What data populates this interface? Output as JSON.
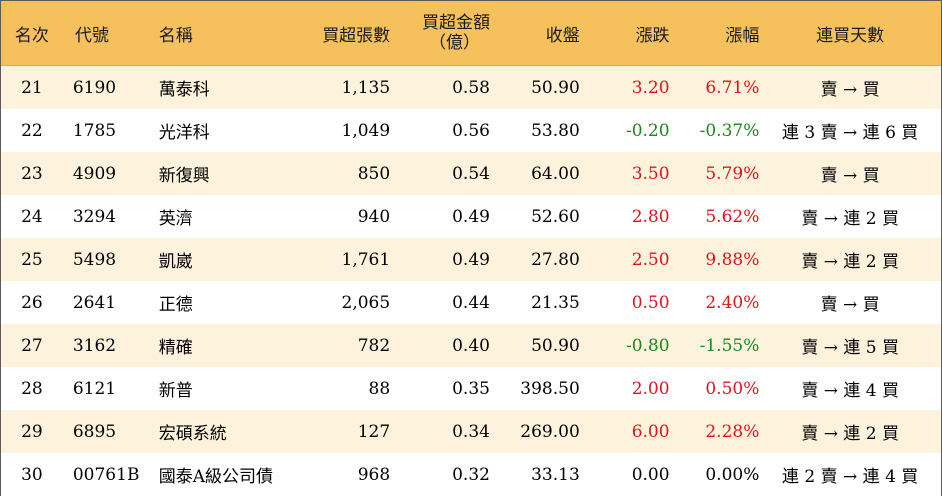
{
  "header": {
    "rank": "名次",
    "code": "代號",
    "name": "名稱",
    "net_lots": "買超張數",
    "amount_line1": "買超金額",
    "amount_line2": "（億）",
    "close": "收盤",
    "change": "漲跌",
    "change_pct": "漲幅",
    "consecutive_days": "連買天數"
  },
  "colors": {
    "header_bg": "#f6c15d",
    "odd_row_bg": "#fdf2dc",
    "up": "#e0141c",
    "down": "#178a1e"
  },
  "rows": [
    {
      "rank": "21",
      "code": "6190",
      "name": "萬泰科",
      "net": "1,135",
      "amount": "0.58",
      "close": "50.90",
      "change": "3.20",
      "pct": "6.71%",
      "trend": "up",
      "days": "賣 → 買"
    },
    {
      "rank": "22",
      "code": "1785",
      "name": "光洋科",
      "net": "1,049",
      "amount": "0.56",
      "close": "53.80",
      "change": "-0.20",
      "pct": "-0.37%",
      "trend": "down",
      "days": "連 3 賣 → 連 6 買"
    },
    {
      "rank": "23",
      "code": "4909",
      "name": "新復興",
      "net": "850",
      "amount": "0.54",
      "close": "64.00",
      "change": "3.50",
      "pct": "5.79%",
      "trend": "up",
      "days": "賣 → 買"
    },
    {
      "rank": "24",
      "code": "3294",
      "name": "英濟",
      "net": "940",
      "amount": "0.49",
      "close": "52.60",
      "change": "2.80",
      "pct": "5.62%",
      "trend": "up",
      "days": "賣 → 連 2 買"
    },
    {
      "rank": "25",
      "code": "5498",
      "name": "凱崴",
      "net": "1,761",
      "amount": "0.49",
      "close": "27.80",
      "change": "2.50",
      "pct": "9.88%",
      "trend": "up",
      "days": "賣 → 連 2 買"
    },
    {
      "rank": "26",
      "code": "2641",
      "name": "正德",
      "net": "2,065",
      "amount": "0.44",
      "close": "21.35",
      "change": "0.50",
      "pct": "2.40%",
      "trend": "up",
      "days": "賣 → 買"
    },
    {
      "rank": "27",
      "code": "3162",
      "name": "精確",
      "net": "782",
      "amount": "0.40",
      "close": "50.90",
      "change": "-0.80",
      "pct": "-1.55%",
      "trend": "down",
      "days": "賣 → 連 5 買"
    },
    {
      "rank": "28",
      "code": "6121",
      "name": "新普",
      "net": "88",
      "amount": "0.35",
      "close": "398.50",
      "change": "2.00",
      "pct": "0.50%",
      "trend": "up",
      "days": "賣 → 連 4 買"
    },
    {
      "rank": "29",
      "code": "6895",
      "name": "宏碩系統",
      "net": "127",
      "amount": "0.34",
      "close": "269.00",
      "change": "6.00",
      "pct": "2.28%",
      "trend": "up",
      "days": "賣 → 連 2 買"
    },
    {
      "rank": "30",
      "code": "00761B",
      "name": "國泰A級公司債",
      "net": "968",
      "amount": "0.32",
      "close": "33.13",
      "change": "0.00",
      "pct": "0.00%",
      "trend": "flat",
      "days": "連 2 賣 → 連 4 買"
    }
  ]
}
